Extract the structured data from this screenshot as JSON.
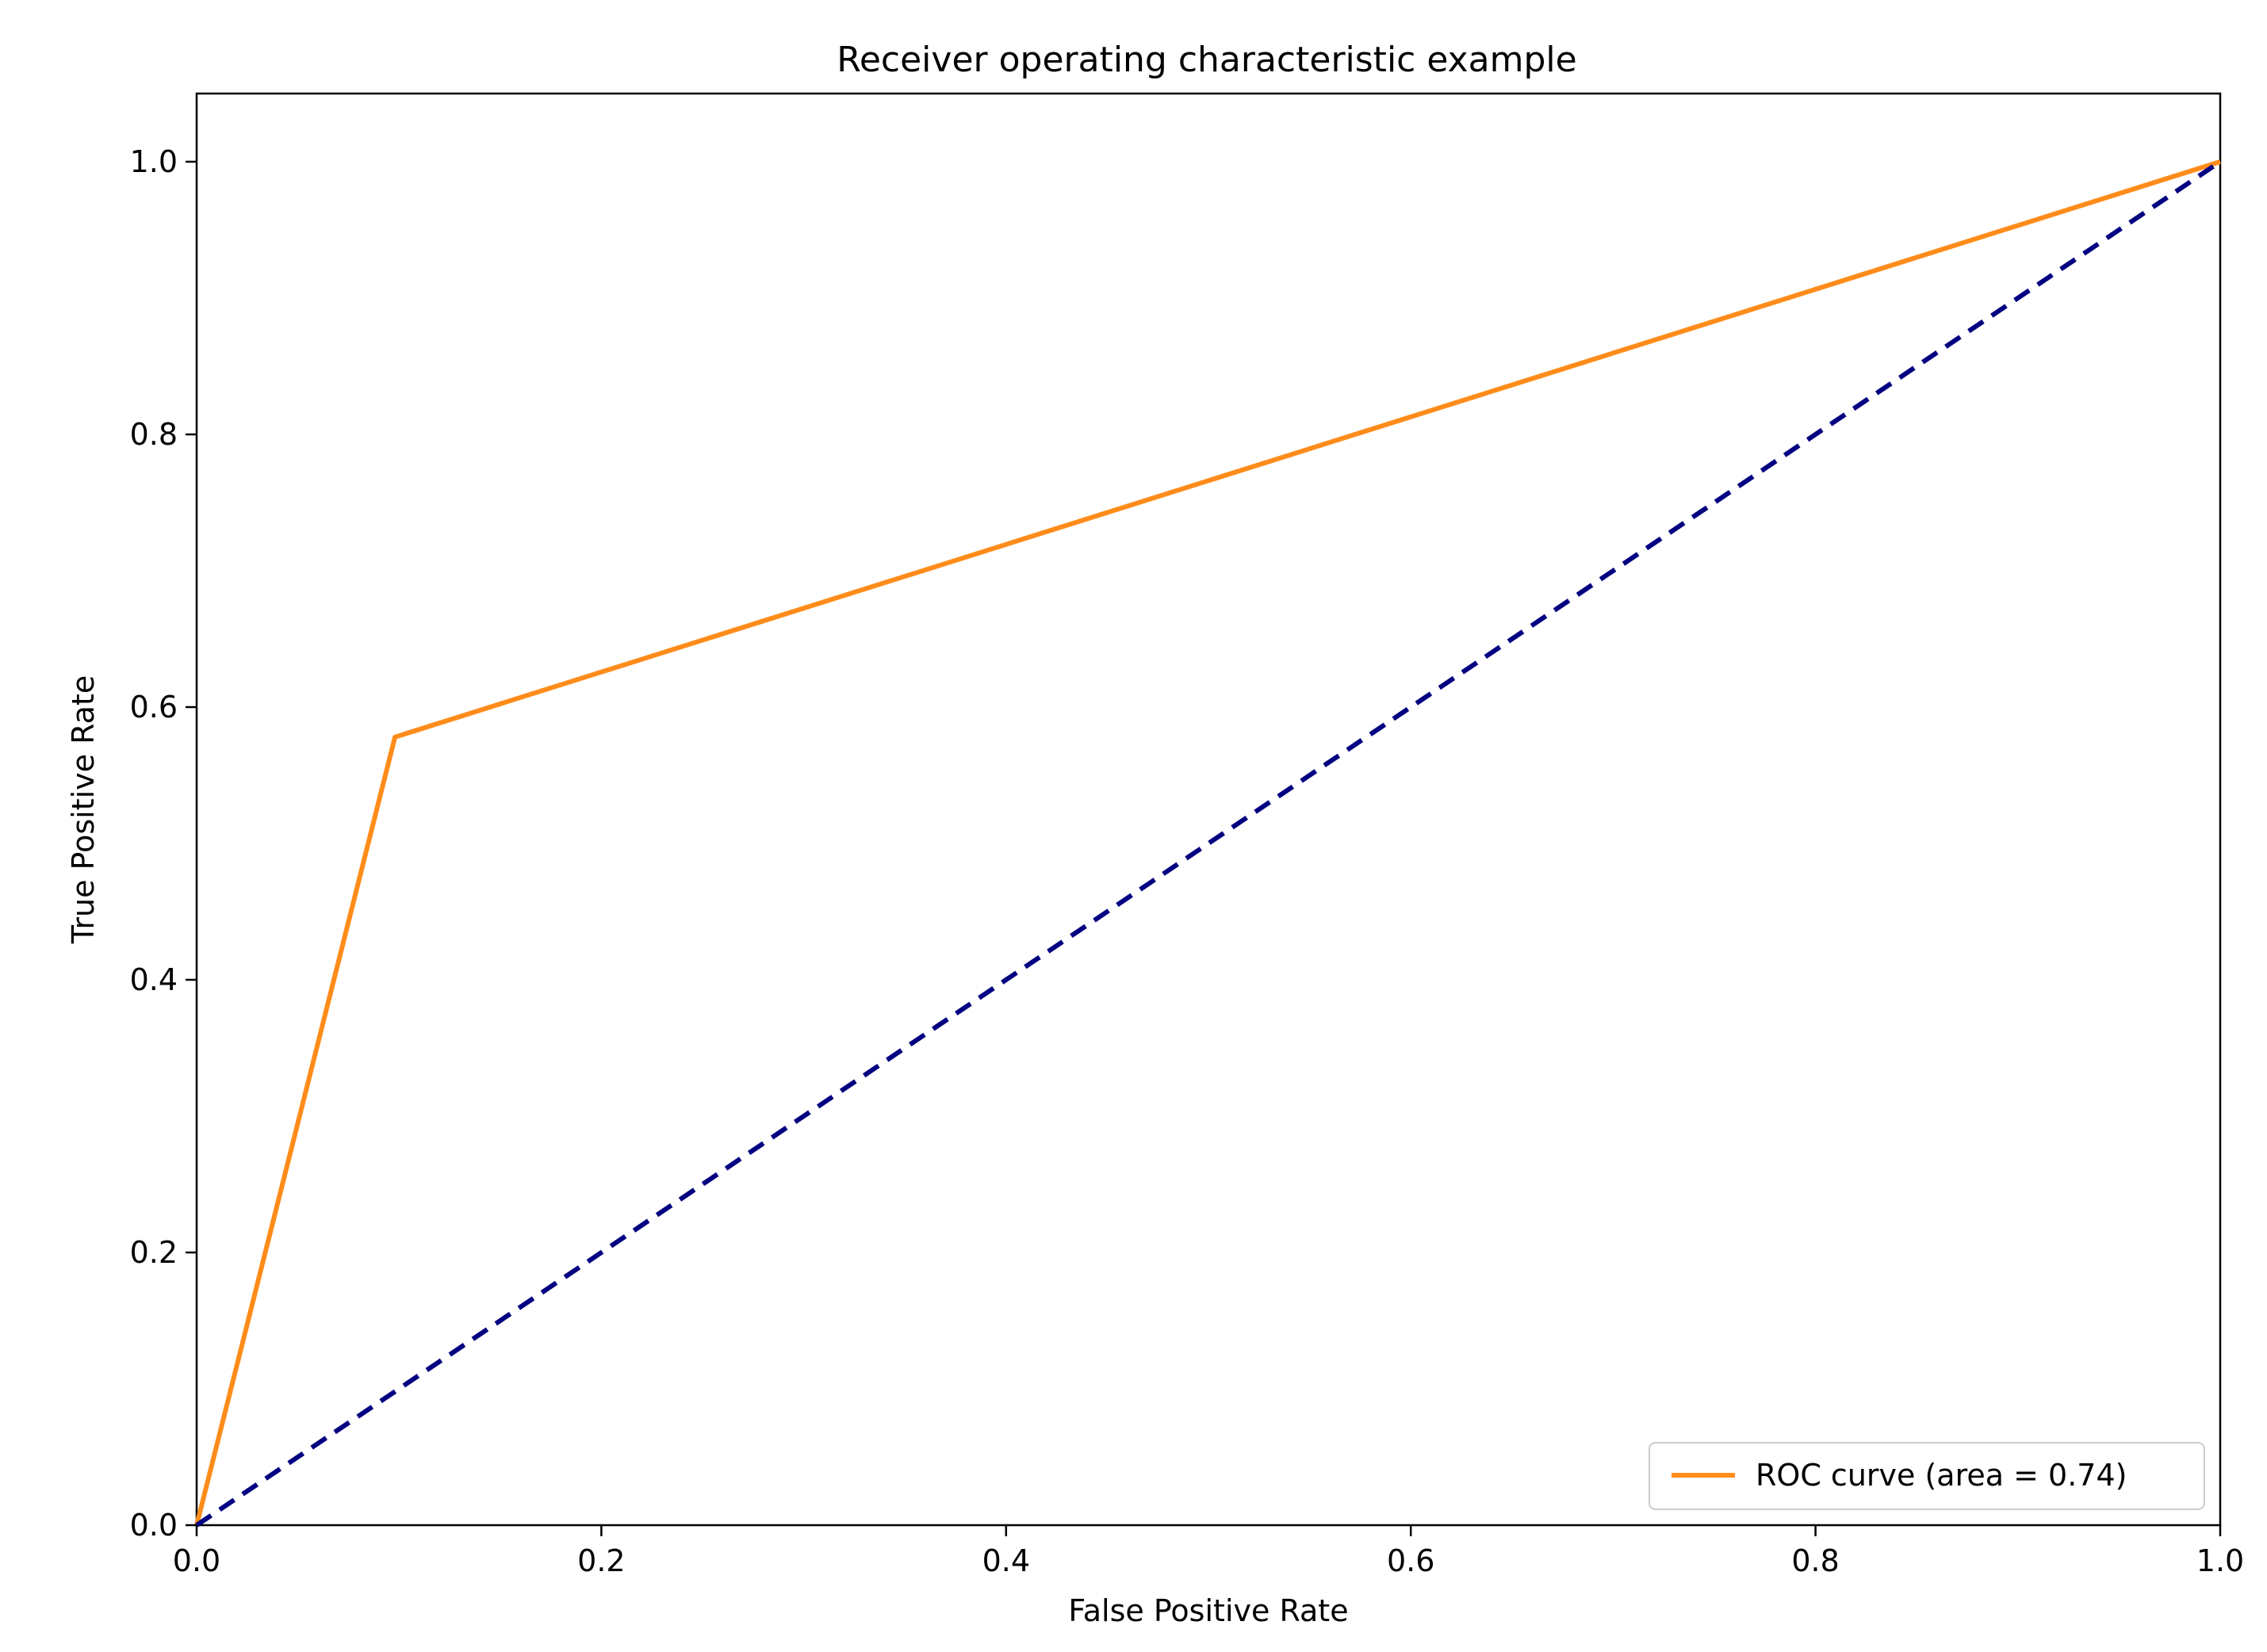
{
  "chart_data": {
    "type": "line",
    "title": "Receiver operating characteristic example",
    "xlabel": "False Positive Rate",
    "ylabel": "True Positive Rate",
    "xlim": [
      0.0,
      1.0
    ],
    "ylim": [
      0.0,
      1.05
    ],
    "xticks": [
      "0.0",
      "0.2",
      "0.4",
      "0.6",
      "0.8",
      "1.0"
    ],
    "yticks": [
      "0.0",
      "0.2",
      "0.4",
      "0.6",
      "0.8",
      "1.0"
    ],
    "grid": false,
    "legend_position": "lower-right",
    "series": [
      {
        "name": "ROC curve (area = 0.74)",
        "color": "#ff8c1a",
        "style": "solid",
        "x": [
          0.0,
          0.098,
          1.0
        ],
        "y": [
          0.0,
          0.578,
          1.0
        ]
      },
      {
        "name": "",
        "color": "#000080",
        "style": "dashed",
        "x": [
          0.0,
          1.0
        ],
        "y": [
          0.0,
          1.0
        ]
      }
    ]
  }
}
